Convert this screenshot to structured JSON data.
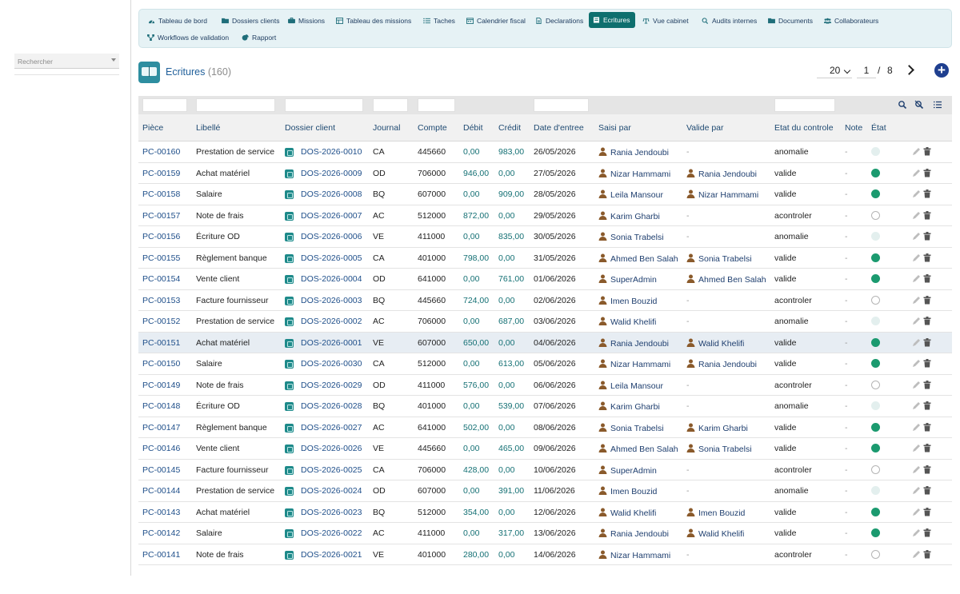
{
  "colors": {
    "accent": "#0e6f6e",
    "link": "#1f4f8a",
    "amount": "#147074",
    "status_valide": "#1b9a6f",
    "status_anomalie": "#e3efee",
    "add_button": "#1f3f8f"
  },
  "sidebar": {
    "search_placeholder": "Rechercher"
  },
  "nav": {
    "items": [
      {
        "label": "Tableau de bord",
        "icon": "dashboard-icon"
      },
      {
        "label": "Dossiers clients",
        "icon": "folder-icon"
      },
      {
        "label": "Missions",
        "icon": "briefcase-icon"
      },
      {
        "label": "Tableau des missions",
        "icon": "table-icon"
      },
      {
        "label": "Taches",
        "icon": "list-icon"
      },
      {
        "label": "Calendrier fiscal",
        "icon": "calendar-icon"
      },
      {
        "label": "Declarations",
        "icon": "file-icon"
      },
      {
        "label": "Ecritures",
        "icon": "book-icon",
        "active": true
      },
      {
        "label": "Vue cabinet",
        "icon": "scale-icon"
      },
      {
        "label": "Audits internes",
        "icon": "search-icon"
      },
      {
        "label": "Documents",
        "icon": "folder-icon"
      },
      {
        "label": "Collaborateurs",
        "icon": "users-icon"
      },
      {
        "label": "Workflows de validation",
        "icon": "workflow-icon"
      },
      {
        "label": "Rapport",
        "icon": "chart-pie-icon"
      }
    ]
  },
  "header": {
    "title": "Ecritures",
    "count": "(160)",
    "page_size": "20",
    "page": "1",
    "page_sep": "/",
    "total_pages": "8"
  },
  "table": {
    "columns": [
      "Pièce",
      "Libellé",
      "Dossier client",
      "Journal",
      "Compte",
      "Débit",
      "Crédit",
      "Date d'entree",
      "Saisi par",
      "Valide par",
      "Etat du controle",
      "Note",
      "État"
    ],
    "rows": [
      {
        "piece": "PC-00160",
        "libelle": "Prestation de service",
        "dossier": "DOS-2026-0010",
        "journal": "CA",
        "compte": "445660",
        "debit": "0,00",
        "credit": "983,00",
        "date": "26/05/2026",
        "saisi": "Rania Jendoubi",
        "valide": "-",
        "etat": "anomalie",
        "note": "-",
        "status": "anomalie"
      },
      {
        "piece": "PC-00159",
        "libelle": "Achat matériel",
        "dossier": "DOS-2026-0009",
        "journal": "OD",
        "compte": "706000",
        "debit": "946,00",
        "credit": "0,00",
        "date": "27/05/2026",
        "saisi": "Nizar Hammami",
        "valide": "Rania Jendoubi",
        "etat": "valide",
        "note": "-",
        "status": "valide"
      },
      {
        "piece": "PC-00158",
        "libelle": "Salaire",
        "dossier": "DOS-2026-0008",
        "journal": "BQ",
        "compte": "607000",
        "debit": "0,00",
        "credit": "909,00",
        "date": "28/05/2026",
        "saisi": "Leila Mansour",
        "valide": "Nizar Hammami",
        "etat": "valide",
        "note": "-",
        "status": "valide"
      },
      {
        "piece": "PC-00157",
        "libelle": "Note de frais",
        "dossier": "DOS-2026-0007",
        "journal": "AC",
        "compte": "512000",
        "debit": "872,00",
        "credit": "0,00",
        "date": "29/05/2026",
        "saisi": "Karim Gharbi",
        "valide": "-",
        "etat": "acontroler",
        "note": "-",
        "status": "acontroler"
      },
      {
        "piece": "PC-00156",
        "libelle": "Écriture OD",
        "dossier": "DOS-2026-0006",
        "journal": "VE",
        "compte": "411000",
        "debit": "0,00",
        "credit": "835,00",
        "date": "30/05/2026",
        "saisi": "Sonia Trabelsi",
        "valide": "-",
        "etat": "anomalie",
        "note": "-",
        "status": "anomalie"
      },
      {
        "piece": "PC-00155",
        "libelle": "Règlement banque",
        "dossier": "DOS-2026-0005",
        "journal": "CA",
        "compte": "401000",
        "debit": "798,00",
        "credit": "0,00",
        "date": "31/05/2026",
        "saisi": "Ahmed Ben Salah",
        "valide": "Sonia Trabelsi",
        "etat": "valide",
        "note": "-",
        "status": "valide"
      },
      {
        "piece": "PC-00154",
        "libelle": "Vente client",
        "dossier": "DOS-2026-0004",
        "journal": "OD",
        "compte": "641000",
        "debit": "0,00",
        "credit": "761,00",
        "date": "01/06/2026",
        "saisi": "SuperAdmin",
        "valide": "Ahmed Ben Salah",
        "etat": "valide",
        "note": "-",
        "status": "valide"
      },
      {
        "piece": "PC-00153",
        "libelle": "Facture fournisseur",
        "dossier": "DOS-2026-0003",
        "journal": "BQ",
        "compte": "445660",
        "debit": "724,00",
        "credit": "0,00",
        "date": "02/06/2026",
        "saisi": "Imen Bouzid",
        "valide": "-",
        "etat": "acontroler",
        "note": "-",
        "status": "acontroler"
      },
      {
        "piece": "PC-00152",
        "libelle": "Prestation de service",
        "dossier": "DOS-2026-0002",
        "journal": "AC",
        "compte": "706000",
        "debit": "0,00",
        "credit": "687,00",
        "date": "03/06/2026",
        "saisi": "Walid Khelifi",
        "valide": "-",
        "etat": "anomalie",
        "note": "-",
        "status": "anomalie"
      },
      {
        "piece": "PC-00151",
        "libelle": "Achat matériel",
        "dossier": "DOS-2026-0001",
        "journal": "VE",
        "compte": "607000",
        "debit": "650,00",
        "credit": "0,00",
        "date": "04/06/2026",
        "saisi": "Rania Jendoubi",
        "valide": "Walid Khelifi",
        "etat": "valide",
        "note": "-",
        "status": "valide",
        "highlight": true
      },
      {
        "piece": "PC-00150",
        "libelle": "Salaire",
        "dossier": "DOS-2026-0030",
        "journal": "CA",
        "compte": "512000",
        "debit": "0,00",
        "credit": "613,00",
        "date": "05/06/2026",
        "saisi": "Nizar Hammami",
        "valide": "Rania Jendoubi",
        "etat": "valide",
        "note": "-",
        "status": "valide"
      },
      {
        "piece": "PC-00149",
        "libelle": "Note de frais",
        "dossier": "DOS-2026-0029",
        "journal": "OD",
        "compte": "411000",
        "debit": "576,00",
        "credit": "0,00",
        "date": "06/06/2026",
        "saisi": "Leila Mansour",
        "valide": "-",
        "etat": "acontroler",
        "note": "-",
        "status": "acontroler"
      },
      {
        "piece": "PC-00148",
        "libelle": "Écriture OD",
        "dossier": "DOS-2026-0028",
        "journal": "BQ",
        "compte": "401000",
        "debit": "0,00",
        "credit": "539,00",
        "date": "07/06/2026",
        "saisi": "Karim Gharbi",
        "valide": "-",
        "etat": "anomalie",
        "note": "-",
        "status": "anomalie"
      },
      {
        "piece": "PC-00147",
        "libelle": "Règlement banque",
        "dossier": "DOS-2026-0027",
        "journal": "AC",
        "compte": "641000",
        "debit": "502,00",
        "credit": "0,00",
        "date": "08/06/2026",
        "saisi": "Sonia Trabelsi",
        "valide": "Karim Gharbi",
        "etat": "valide",
        "note": "-",
        "status": "valide"
      },
      {
        "piece": "PC-00146",
        "libelle": "Vente client",
        "dossier": "DOS-2026-0026",
        "journal": "VE",
        "compte": "445660",
        "debit": "0,00",
        "credit": "465,00",
        "date": "09/06/2026",
        "saisi": "Ahmed Ben Salah",
        "valide": "Sonia Trabelsi",
        "etat": "valide",
        "note": "-",
        "status": "valide"
      },
      {
        "piece": "PC-00145",
        "libelle": "Facture fournisseur",
        "dossier": "DOS-2026-0025",
        "journal": "CA",
        "compte": "706000",
        "debit": "428,00",
        "credit": "0,00",
        "date": "10/06/2026",
        "saisi": "SuperAdmin",
        "valide": "-",
        "etat": "acontroler",
        "note": "-",
        "status": "acontroler"
      },
      {
        "piece": "PC-00144",
        "libelle": "Prestation de service",
        "dossier": "DOS-2026-0024",
        "journal": "OD",
        "compte": "607000",
        "debit": "0,00",
        "credit": "391,00",
        "date": "11/06/2026",
        "saisi": "Imen Bouzid",
        "valide": "-",
        "etat": "anomalie",
        "note": "-",
        "status": "anomalie"
      },
      {
        "piece": "PC-00143",
        "libelle": "Achat matériel",
        "dossier": "DOS-2026-0023",
        "journal": "BQ",
        "compte": "512000",
        "debit": "354,00",
        "credit": "0,00",
        "date": "12/06/2026",
        "saisi": "Walid Khelifi",
        "valide": "Imen Bouzid",
        "etat": "valide",
        "note": "-",
        "status": "valide"
      },
      {
        "piece": "PC-00142",
        "libelle": "Salaire",
        "dossier": "DOS-2026-0022",
        "journal": "AC",
        "compte": "411000",
        "debit": "0,00",
        "credit": "317,00",
        "date": "13/06/2026",
        "saisi": "Rania Jendoubi",
        "valide": "Walid Khelifi",
        "etat": "valide",
        "note": "-",
        "status": "valide"
      },
      {
        "piece": "PC-00141",
        "libelle": "Note de frais",
        "dossier": "DOS-2026-0021",
        "journal": "VE",
        "compte": "401000",
        "debit": "280,00",
        "credit": "0,00",
        "date": "14/06/2026",
        "saisi": "Nizar Hammami",
        "valide": "-",
        "etat": "acontroler",
        "note": "-",
        "status": "acontroler"
      }
    ]
  }
}
